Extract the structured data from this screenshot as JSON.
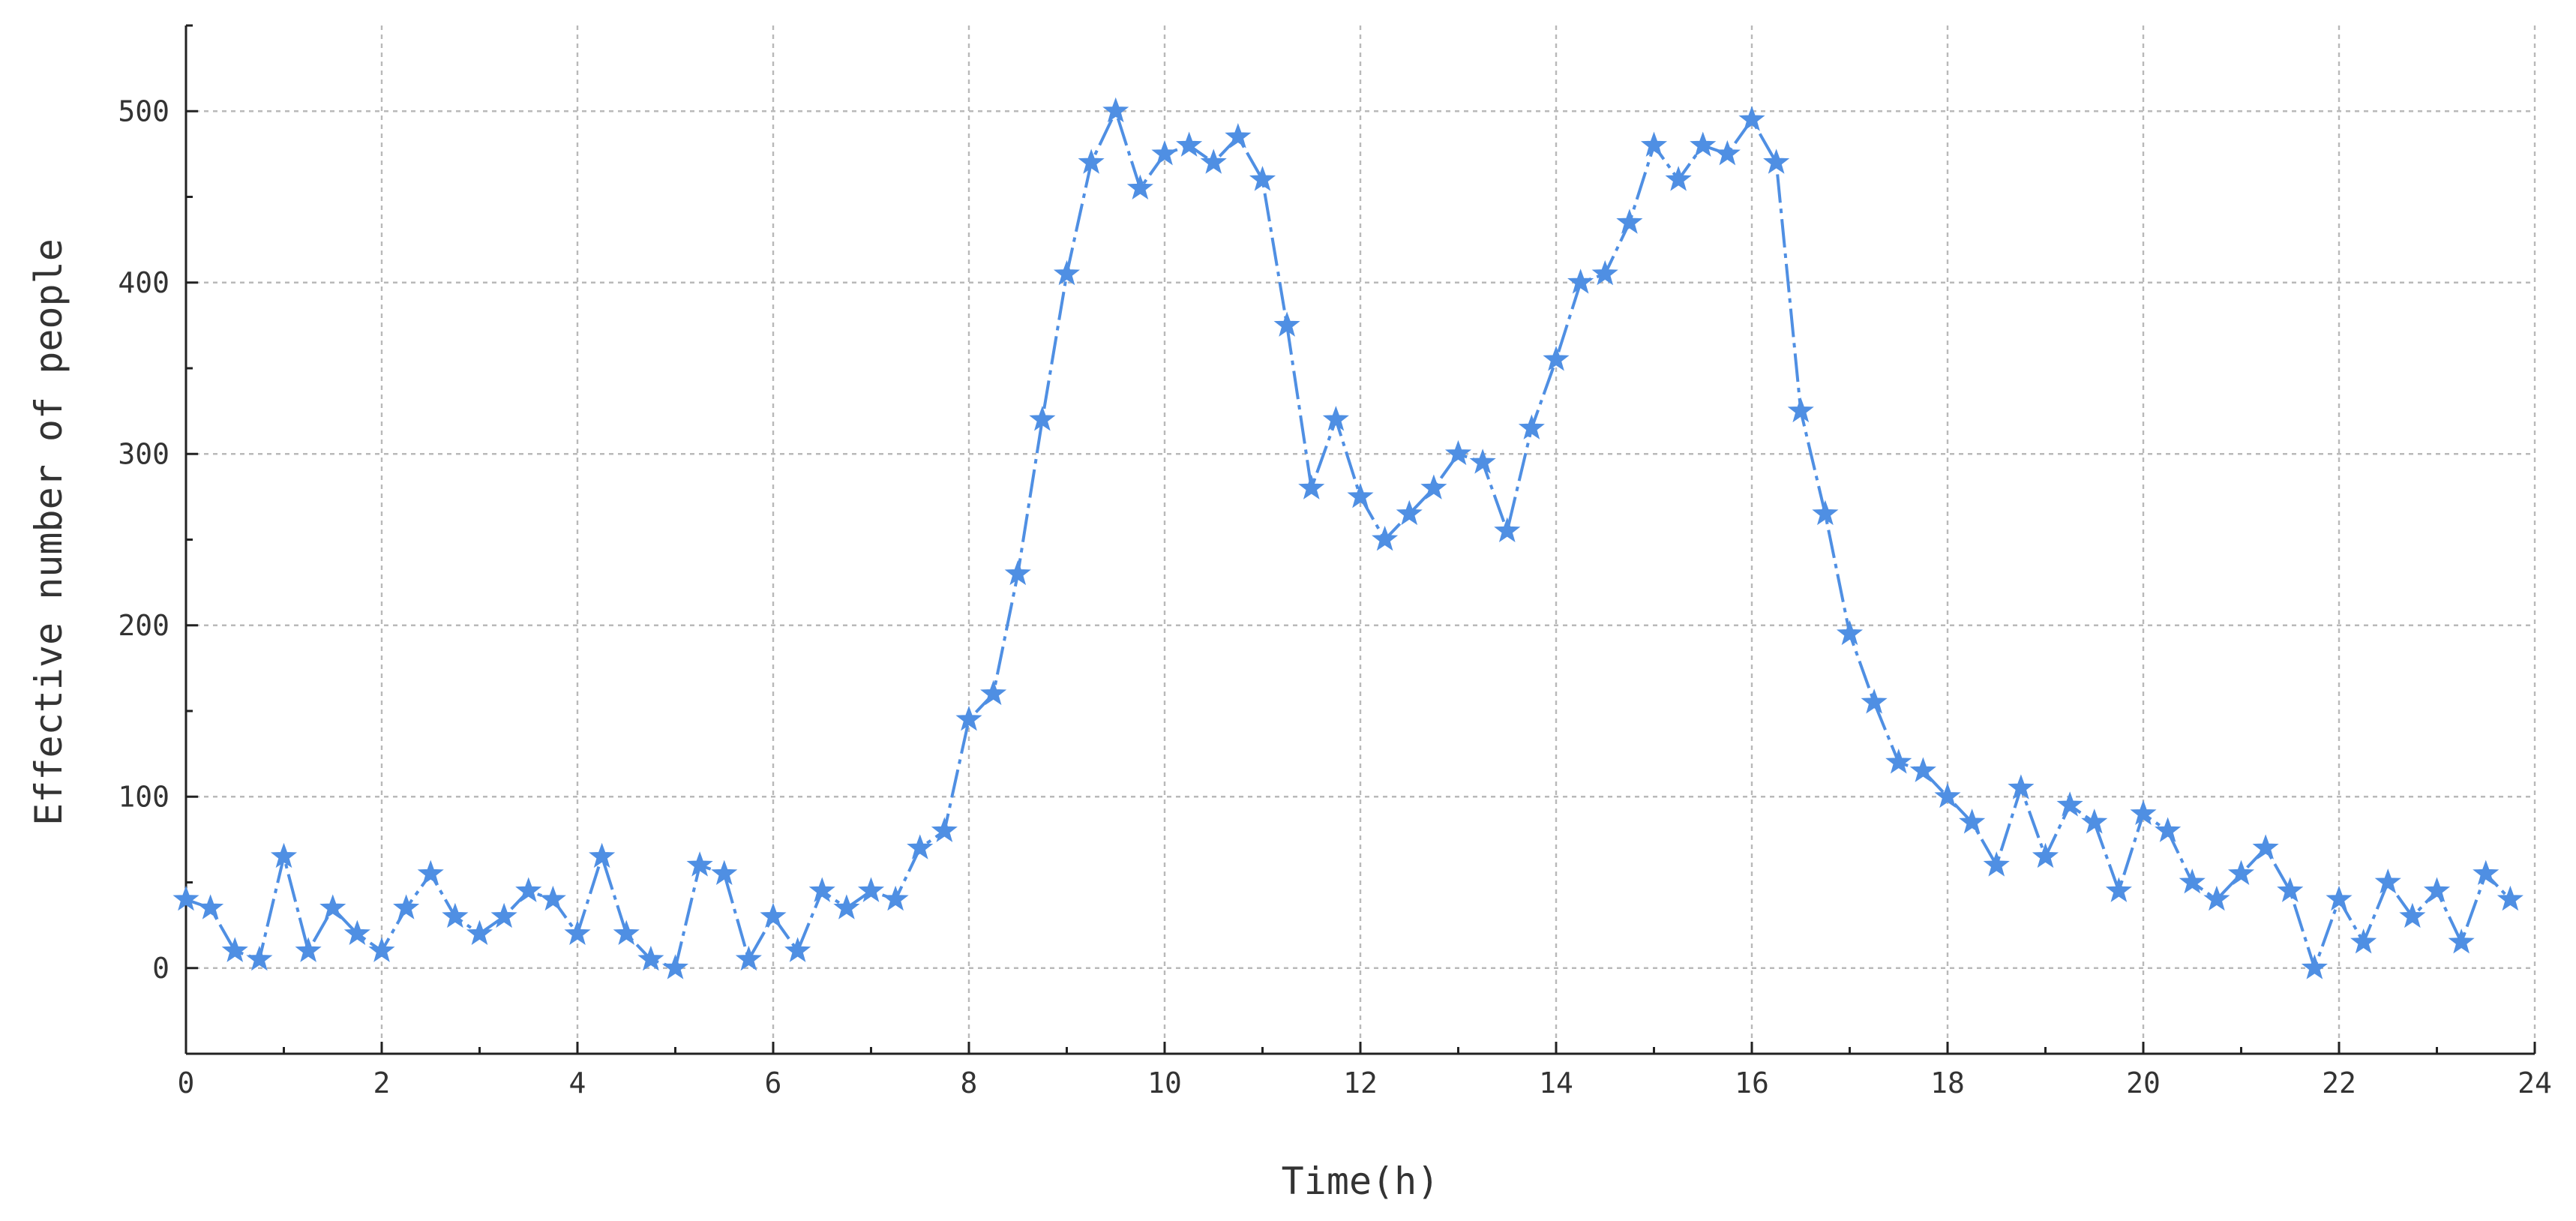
{
  "chart_data": {
    "type": "line",
    "title": "",
    "xlabel": "Time(h)",
    "ylabel": "Effective number of people",
    "xlim": [
      0,
      24
    ],
    "ylim": [
      -50,
      550
    ],
    "xticks": [
      0,
      2,
      4,
      6,
      8,
      10,
      12,
      14,
      16,
      18,
      20,
      22,
      24
    ],
    "yticks": [
      0,
      100,
      200,
      300,
      400,
      500
    ],
    "xtick_labels": [
      "0",
      "2",
      "4",
      "6",
      "8",
      "10",
      "12",
      "14",
      "16",
      "18",
      "20",
      "22",
      "24"
    ],
    "ytick_labels": [
      "0",
      "100",
      "200",
      "300",
      "400",
      "500"
    ],
    "grid": true,
    "marker": "star",
    "line_style": "dash-dot",
    "color": "#4f8fe3",
    "series": [
      {
        "x": [
          0,
          0.25,
          0.5,
          0.75,
          1,
          1.25,
          1.5,
          1.75,
          2,
          2.25,
          2.5,
          2.75,
          3,
          3.25,
          3.5,
          3.75,
          4,
          4.25,
          4.5,
          4.75,
          5,
          5.25,
          5.5,
          5.75,
          6,
          6.25,
          6.5,
          6.75,
          7,
          7.25,
          7.5,
          7.75,
          8,
          8.25,
          8.5,
          8.75,
          9,
          9.25,
          9.5,
          9.75,
          10,
          10.25,
          10.5,
          10.75,
          11,
          11.25,
          11.5,
          11.75,
          12,
          12.25,
          12.5,
          12.75,
          13,
          13.25,
          13.5,
          13.75,
          14,
          14.25,
          14.5,
          14.75,
          15,
          15.25,
          15.5,
          15.75,
          16,
          16.25,
          16.5,
          16.75,
          17,
          17.25,
          17.5,
          17.75,
          18,
          18.25,
          18.5,
          18.75,
          19,
          19.25,
          19.5,
          19.75,
          20,
          20.25,
          20.5,
          20.75,
          21,
          21.25,
          21.5,
          21.75,
          22,
          22.25,
          22.5,
          22.75,
          23,
          23.25,
          23.5,
          23.75
        ],
        "values": [
          40,
          35,
          10,
          5,
          65,
          10,
          35,
          20,
          10,
          35,
          55,
          30,
          20,
          30,
          45,
          40,
          20,
          65,
          20,
          5,
          0,
          60,
          55,
          5,
          30,
          10,
          45,
          35,
          45,
          40,
          70,
          80,
          145,
          160,
          230,
          320,
          405,
          470,
          500,
          455,
          475,
          480,
          470,
          485,
          460,
          375,
          280,
          320,
          275,
          250,
          265,
          280,
          300,
          295,
          255,
          315,
          355,
          400,
          405,
          435,
          480,
          460,
          480,
          475,
          495,
          470,
          325,
          265,
          195,
          155,
          120,
          115,
          100,
          85,
          60,
          105,
          65,
          95,
          85,
          45,
          90,
          80,
          50,
          40,
          55,
          70,
          45,
          0,
          40,
          15,
          50,
          30,
          45,
          15,
          55,
          40
        ]
      }
    ]
  }
}
